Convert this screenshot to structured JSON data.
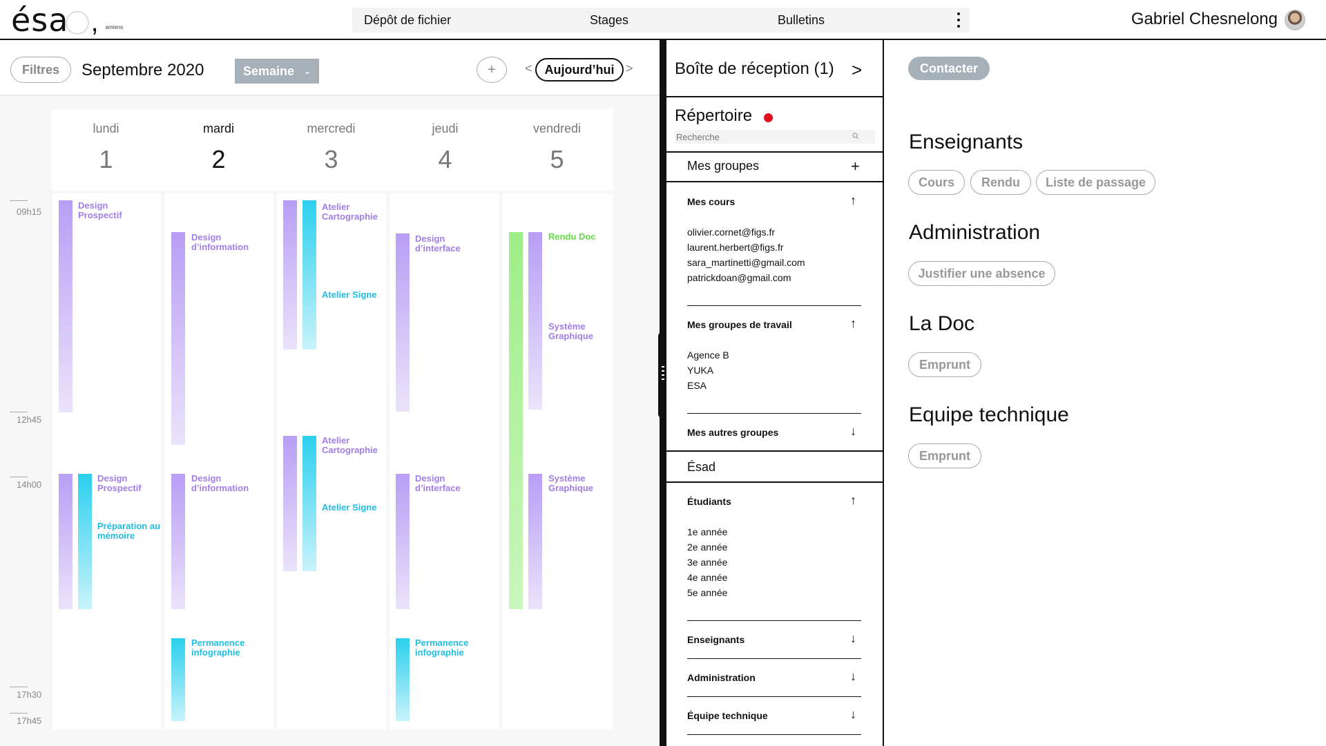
{
  "brand": {
    "logo_main": "ésa",
    "logo_comma": ",",
    "logo_sub": "amiens"
  },
  "topnav": {
    "items": [
      "Dépôt de fichier",
      "Stages",
      "Bulletins"
    ]
  },
  "user": {
    "name": "Gabriel Chesnelong"
  },
  "calendar": {
    "filters_label": "Filtres",
    "month_title": "Septembre 2020",
    "view_select": "Semaine",
    "add_label": "+",
    "prev_label": "<",
    "next_label": ">",
    "today_label": "Aujourd’hui",
    "days": [
      {
        "name": "lundi",
        "num": "1"
      },
      {
        "name": "mardi",
        "num": "2"
      },
      {
        "name": "mercredi",
        "num": "3"
      },
      {
        "name": "jeudi",
        "num": "4"
      },
      {
        "name": "vendredi",
        "num": "5"
      }
    ],
    "times": [
      "09h15",
      "12h45",
      "14h00",
      "17h30",
      "17h45"
    ],
    "events": {
      "mon_1": "Design Prospectif",
      "mon_2": "Design Prospectif",
      "mon_3": "Préparation au mémoire",
      "tue_1": "Design d’information",
      "tue_2": "Design d’information",
      "tue_3": "Permanence infographie",
      "wed_1": "Atelier Cartographie",
      "wed_2": "Atelier Signe",
      "wed_3": "Atelier Cartographie",
      "wed_4": "Atelier Signe",
      "thu_1": "Design d’interface",
      "thu_2": "Design d’interface",
      "thu_3": "Permanence infographie",
      "fri_1": "Rendu Doc",
      "fri_2": "Système Graphique",
      "fri_3": "Système Graphique"
    }
  },
  "sidebar": {
    "inbox": "Boîte de réception (1)",
    "inbox_chevron": ">",
    "directory": "Répertoire",
    "search_placeholder": "Recherche",
    "my_groups": "Mes groupes",
    "my_courses": "Mes cours",
    "course_emails": [
      "olivier.cornet@figs.fr",
      "laurent.herbert@figs.fr",
      "sara_martinetti@gmail.com",
      "patrickdoan@gmail.com"
    ],
    "work_groups": "Mes groupes de travail",
    "work_group_items": [
      "Agence B",
      "YUKA",
      "ESA"
    ],
    "other_groups": "Mes autres groupes",
    "esad": "Ésad",
    "students": "Étudiants",
    "student_years": [
      "1e année",
      "2e année",
      "3e année",
      "4e année",
      "5e année"
    ],
    "teachers": "Enseignants",
    "administration": "Administration",
    "tech_team": "Équipe technique"
  },
  "contacts": {
    "contact_button": "Contacter",
    "sections": [
      {
        "title": "Enseignants",
        "tags": [
          "Cours",
          "Rendu",
          "Liste de passage"
        ]
      },
      {
        "title": "Administration",
        "tags": [
          "Justifier une absence"
        ]
      },
      {
        "title": "La Doc",
        "tags": [
          "Emprunt"
        ]
      },
      {
        "title": "Equipe technique",
        "tags": [
          "Emprunt"
        ]
      }
    ]
  }
}
